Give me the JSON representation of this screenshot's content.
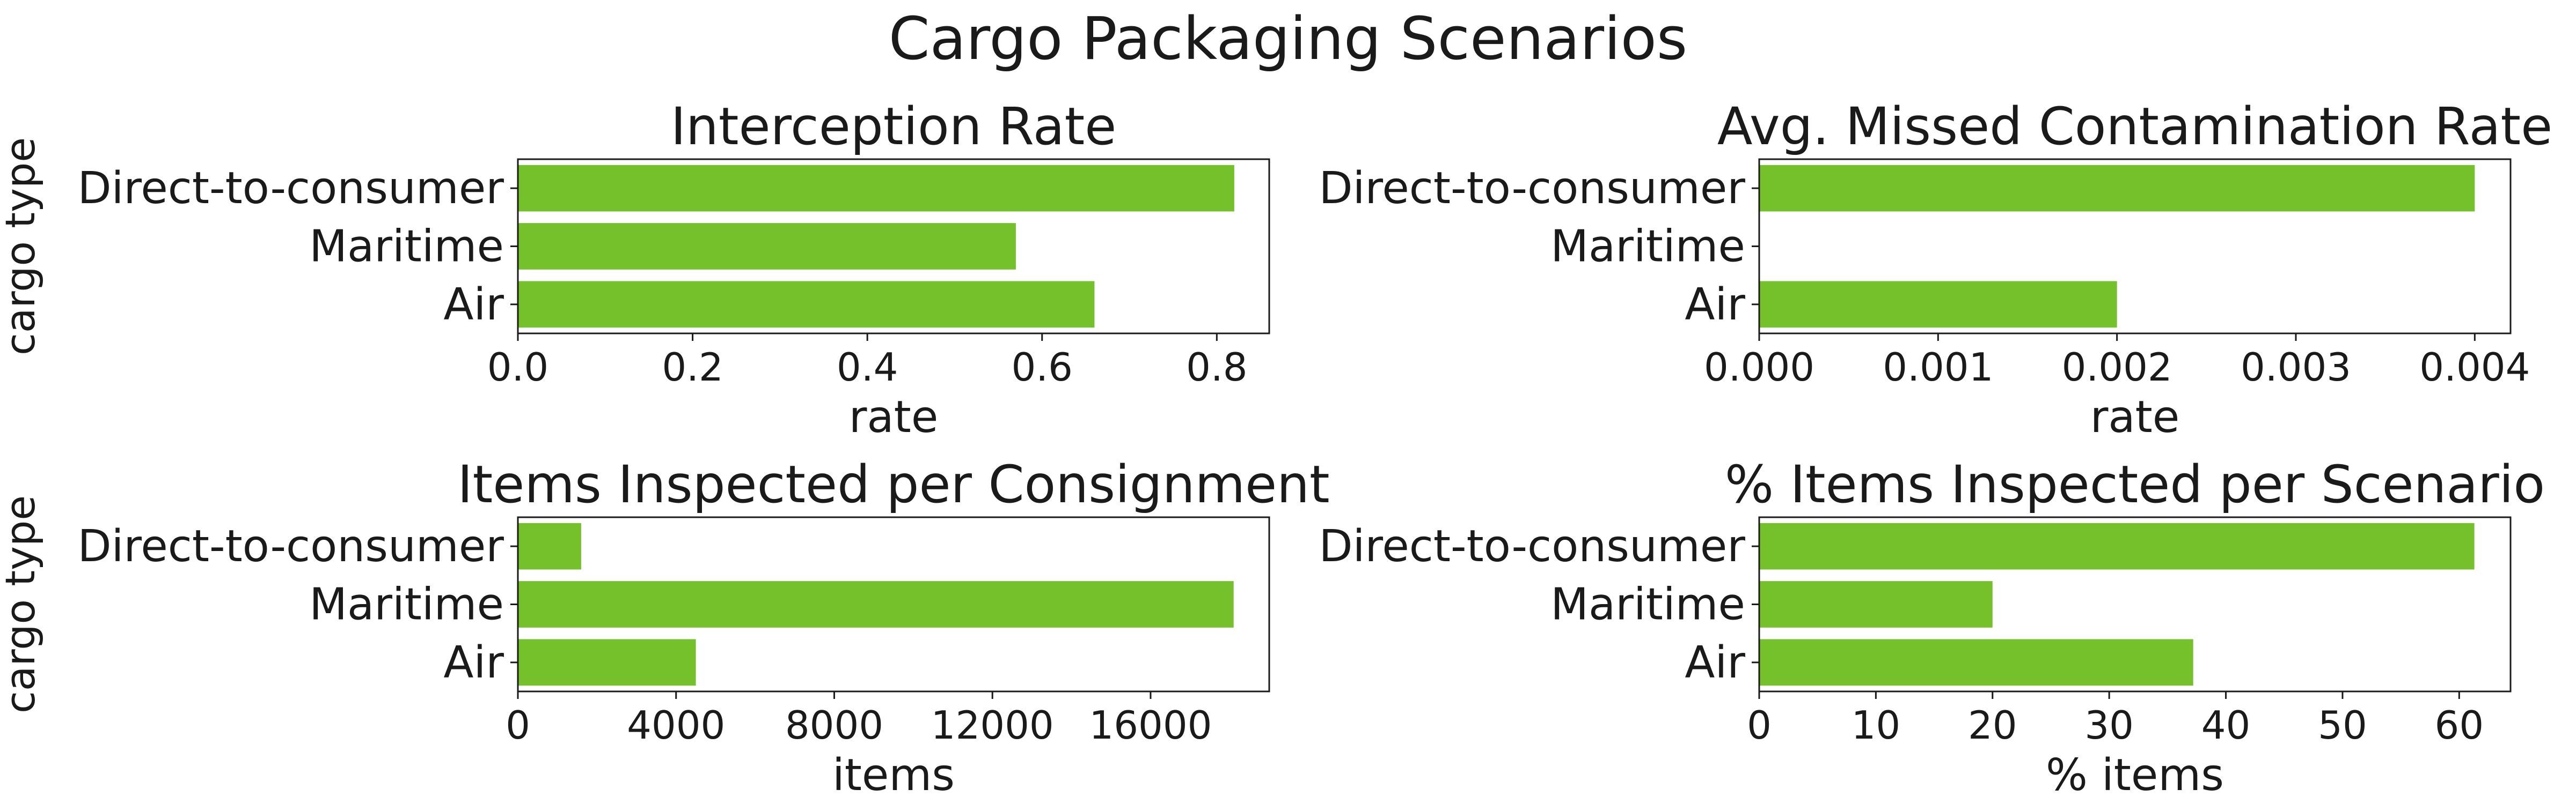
{
  "figure": {
    "title": "Cargo Packaging Scenarios"
  },
  "colors": {
    "bar": "#74c12c",
    "axis": "#1a1a1a",
    "background": "#ffffff"
  },
  "chart_data": [
    {
      "type": "bar",
      "orientation": "horizontal",
      "title": "Interception Rate",
      "categories": [
        "Direct-to-consumer",
        "Maritime",
        "Air"
      ],
      "values": [
        0.82,
        0.57,
        0.66
      ],
      "xlabel": "rate",
      "ylabel": "cargo type",
      "xlim": [
        0,
        0.86
      ],
      "xticks": [
        0,
        0.2,
        0.4,
        0.6,
        0.8
      ],
      "xtick_labels": [
        "0.0",
        "0.2",
        "0.4",
        "0.6",
        "0.8"
      ]
    },
    {
      "type": "bar",
      "orientation": "horizontal",
      "title": "Avg. Missed Contamination Rate",
      "categories": [
        "Direct-to-consumer",
        "Maritime",
        "Air"
      ],
      "values": [
        0.004,
        0.0,
        0.002
      ],
      "xlabel": "rate",
      "ylabel": "",
      "xlim": [
        0,
        0.0042
      ],
      "xticks": [
        0,
        0.001,
        0.002,
        0.003,
        0.004
      ],
      "xtick_labels": [
        "0.000",
        "0.001",
        "0.002",
        "0.003",
        "0.004"
      ]
    },
    {
      "type": "bar",
      "orientation": "horizontal",
      "title": "Items Inspected per Consignment",
      "categories": [
        "Direct-to-consumer",
        "Maritime",
        "Air"
      ],
      "values": [
        1600,
        18100,
        4500
      ],
      "xlabel": "items",
      "ylabel": "cargo type",
      "xlim": [
        0,
        19000
      ],
      "xticks": [
        0,
        4000,
        8000,
        12000,
        16000
      ],
      "xtick_labels": [
        "0",
        "4000",
        "8000",
        "12000",
        "16000"
      ]
    },
    {
      "type": "bar",
      "orientation": "horizontal",
      "title": "% Items Inspected per Scenario",
      "categories": [
        "Direct-to-consumer",
        "Maritime",
        "Air"
      ],
      "values": [
        61.3,
        20.0,
        37.2
      ],
      "xlabel": "% items",
      "ylabel": "",
      "xlim": [
        0,
        64.4
      ],
      "xticks": [
        0,
        10,
        20,
        30,
        40,
        50,
        60
      ],
      "xtick_labels": [
        "0",
        "10",
        "20",
        "30",
        "40",
        "50",
        "60"
      ]
    }
  ]
}
